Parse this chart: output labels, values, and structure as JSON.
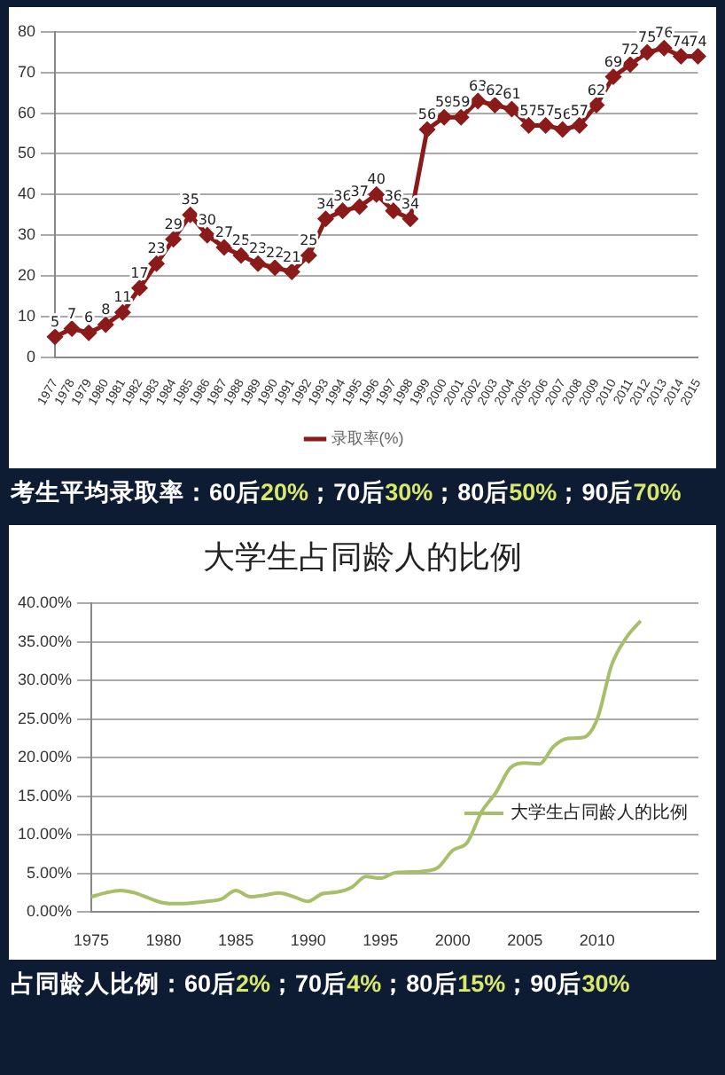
{
  "chart_data": [
    {
      "type": "line",
      "categories": [
        "1977",
        "1978",
        "1979",
        "1980",
        "1981",
        "1982",
        "1983",
        "1984",
        "1985",
        "1986",
        "1987",
        "1988",
        "1989",
        "1990",
        "1991",
        "1992",
        "1993",
        "1994",
        "1995",
        "1996",
        "1997",
        "1998",
        "1999",
        "2000",
        "2001",
        "2002",
        "2003",
        "2004",
        "2005",
        "2006",
        "2007",
        "2008",
        "2009",
        "2010",
        "2011",
        "2012",
        "2013",
        "2014",
        "2015"
      ],
      "series": [
        {
          "name": "录取率(%)",
          "color": "#8b1a1a",
          "values": [
            5,
            7,
            6,
            8,
            11,
            17,
            23,
            29,
            35,
            30,
            27,
            25,
            23,
            22,
            21,
            25,
            34,
            36,
            37,
            40,
            36,
            34,
            56,
            59,
            59,
            63,
            62,
            61,
            57,
            57,
            56,
            57,
            62,
            69,
            72,
            75,
            76,
            74,
            74
          ]
        }
      ],
      "ylim": [
        0,
        80
      ],
      "yticks": [
        0,
        10,
        20,
        30,
        40,
        50,
        60,
        70,
        80
      ],
      "grid": "y",
      "legend": "bottom",
      "marker": "diamond",
      "data_labels": true,
      "annotations": [
        "考生平均录取率：60后20%；70后30%；80后50%；90后70%"
      ]
    },
    {
      "type": "line",
      "title": "大学生占同龄人的比例",
      "series": [
        {
          "name": "大学生占同龄人的比例",
          "color": "#a8bf6a",
          "x": [
            1975,
            1976,
            1977,
            1978,
            1979,
            1980,
            1981,
            1982,
            1983,
            1984,
            1985,
            1986,
            1987,
            1988,
            1989,
            1990,
            1991,
            1992,
            1993,
            1994,
            1995,
            1996,
            1997,
            1998,
            1999,
            2000,
            2001,
            2002,
            2003,
            2004,
            2005,
            2006,
            2007,
            2008,
            2009,
            2010,
            2011,
            2012,
            2013
          ],
          "values": [
            2.0,
            2.5,
            2.8,
            2.5,
            1.8,
            1.2,
            1.1,
            1.2,
            1.4,
            1.7,
            2.8,
            2.0,
            2.2,
            2.5,
            2.0,
            1.4,
            2.4,
            2.6,
            3.2,
            4.6,
            4.4,
            5.1,
            5.2,
            5.3,
            5.8,
            8.0,
            9.0,
            13.0,
            15.5,
            18.7,
            19.3,
            19.2,
            21.5,
            22.5,
            22.6,
            25.0,
            32.0,
            35.5,
            37.7
          ]
        }
      ],
      "xlim": [
        1975,
        2017
      ],
      "xticks": [
        1975,
        1980,
        1985,
        1990,
        1995,
        2000,
        2005,
        2010
      ],
      "ylim": [
        0,
        40
      ],
      "yticks": [
        {
          "value": 0,
          "label": "0.00%"
        },
        {
          "value": 5,
          "label": "5.00%"
        },
        {
          "value": 10,
          "label": "10.00%"
        },
        {
          "value": 15,
          "label": "15.00%"
        },
        {
          "value": 20,
          "label": "20.00%"
        },
        {
          "value": 25,
          "label": "25.00%"
        },
        {
          "value": 30,
          "label": "30.00%"
        },
        {
          "value": 35,
          "label": "35.00%"
        },
        {
          "value": 40,
          "label": "40.00%"
        }
      ],
      "grid": "y",
      "legend": "right",
      "marker": "none",
      "annotations": [
        "占同龄人比例：60后2%；70后4%；80后15%；90后30%"
      ]
    }
  ]
}
